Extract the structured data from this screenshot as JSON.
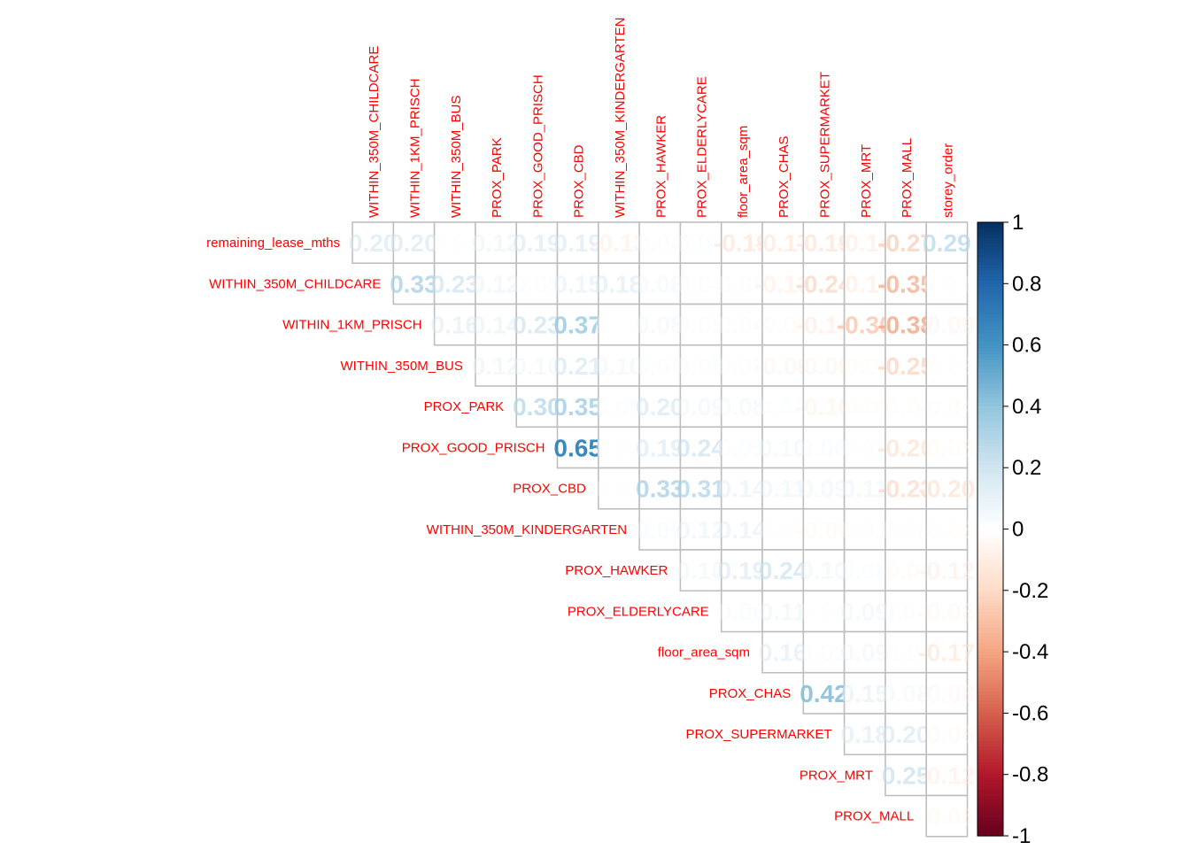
{
  "chart_data": {
    "type": "heatmap",
    "layout": "upper-triangle",
    "label_color": "#FF0000",
    "grid_color": "#BEBEBE",
    "variables": [
      "remaining_lease_mths",
      "WITHIN_350M_CHILDCARE",
      "WITHIN_1KM_PRISCH",
      "WITHIN_350M_BUS",
      "PROX_PARK",
      "PROX_GOOD_PRISCH",
      "PROX_CBD",
      "WITHIN_350M_KINDERGARTEN",
      "PROX_HAWKER",
      "PROX_ELDERLYCARE",
      "floor_area_sqm",
      "PROX_CHAS",
      "PROX_SUPERMARKET",
      "PROX_MRT",
      "PROX_MALL",
      "storey_order"
    ],
    "row_labels": [
      "remaining_lease_mths",
      "WITHIN_350M_CHILDCARE",
      "WITHIN_1KM_PRISCH",
      "WITHIN_350M_BUS",
      "PROX_PARK",
      "PROX_GOOD_PRISCH",
      "PROX_CBD",
      "WITHIN_350M_KINDERGARTEN",
      "PROX_HAWKER",
      "PROX_ELDERLYCARE",
      "floor_area_sqm",
      "PROX_CHAS",
      "PROX_SUPERMARKET",
      "PROX_MRT",
      "PROX_MALL"
    ],
    "column_labels": [
      "WITHIN_350M_CHILDCARE",
      "WITHIN_1KM_PRISCH",
      "WITHIN_350M_BUS",
      "PROX_PARK",
      "PROX_GOOD_PRISCH",
      "PROX_CBD",
      "WITHIN_350M_KINDERGARTEN",
      "PROX_HAWKER",
      "PROX_ELDERLYCARE",
      "floor_area_sqm",
      "PROX_CHAS",
      "PROX_SUPERMARKET",
      "PROX_MRT",
      "PROX_MALL",
      "storey_order"
    ],
    "values": [
      [
        0.2,
        0.2,
        0.03,
        0.12,
        0.19,
        0.19,
        -0.13,
        0.04,
        0.04,
        -0.19,
        -0.17,
        -0.19,
        -0.14,
        -0.27,
        0.29
      ],
      [
        null,
        0.33,
        0.23,
        0.12,
        0.05,
        0.15,
        0.18,
        0.08,
        0.04,
        0.04,
        -0.13,
        -0.24,
        -0.14,
        -0.35,
        0.03
      ],
      [
        null,
        null,
        0.16,
        0.14,
        0.23,
        0.37,
        0.0,
        0.08,
        0.05,
        0.04,
        -0.05,
        -0.14,
        -0.3,
        -0.38,
        -0.09
      ],
      [
        null,
        null,
        null,
        0.12,
        0.1,
        0.21,
        0.1,
        0.04,
        0.05,
        0.05,
        -0.09,
        -0.09,
        -0.05,
        -0.25,
        -0.03
      ],
      [
        null,
        null,
        null,
        null,
        0.3,
        0.35,
        0.05,
        0.2,
        0.09,
        0.08,
        0.04,
        -0.1,
        -0.05,
        -0.04,
        -0.04
      ],
      [
        null,
        null,
        null,
        null,
        null,
        0.65,
        0.02,
        0.19,
        0.24,
        0.05,
        0.1,
        0.06,
        0.02,
        -0.2,
        -0.05
      ],
      [
        null,
        null,
        null,
        null,
        null,
        null,
        0.02,
        0.33,
        0.31,
        0.14,
        0.11,
        0.09,
        0.11,
        -0.23,
        -0.2
      ],
      [
        null,
        null,
        null,
        null,
        null,
        null,
        null,
        0.06,
        0.12,
        0.14,
        0.02,
        -0.06,
        0.02,
        0.02,
        -0.03
      ],
      [
        null,
        null,
        null,
        null,
        null,
        null,
        null,
        null,
        0.1,
        0.19,
        0.24,
        0.1,
        0.05,
        -0.06,
        -0.12
      ],
      [
        null,
        null,
        null,
        null,
        null,
        null,
        null,
        null,
        null,
        0.06,
        0.11,
        0.02,
        0.09,
        0.04,
        -0.08
      ],
      [
        null,
        null,
        null,
        null,
        null,
        null,
        null,
        null,
        null,
        null,
        0.16,
        0.05,
        0.09,
        -0.04,
        -0.17
      ],
      [
        null,
        null,
        null,
        null,
        null,
        null,
        null,
        null,
        null,
        null,
        null,
        0.42,
        0.15,
        0.08,
        -0.08
      ],
      [
        null,
        null,
        null,
        null,
        null,
        null,
        null,
        null,
        null,
        null,
        null,
        null,
        0.18,
        0.2,
        -0.06
      ],
      [
        null,
        null,
        null,
        null,
        null,
        null,
        null,
        null,
        null,
        null,
        null,
        null,
        null,
        0.25,
        -0.12
      ],
      [
        null,
        null,
        null,
        null,
        null,
        null,
        null,
        null,
        null,
        null,
        null,
        null,
        null,
        null,
        -0.06
      ]
    ],
    "colorbar": {
      "range": [
        -1,
        1
      ],
      "ticks": [
        "1",
        "0.8",
        "0.6",
        "0.4",
        "0.2",
        "0",
        "-0.2",
        "-0.4",
        "-0.6",
        "-0.8",
        "-1"
      ],
      "colors": [
        "#67001F",
        "#B2182B",
        "#D6604D",
        "#F4A582",
        "#FDDBC7",
        "#FFFFFF",
        "#D1E5F0",
        "#92C5DE",
        "#4393C3",
        "#2166AC",
        "#053061"
      ]
    }
  }
}
